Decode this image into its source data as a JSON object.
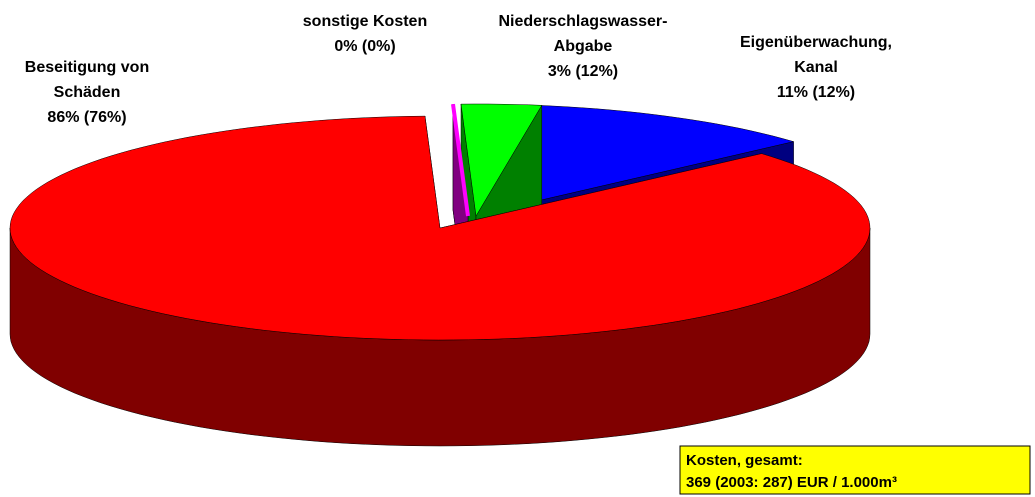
{
  "chart_data": {
    "type": "pie3d",
    "categories": [
      [
        "sonstige Kosten"
      ],
      [
        "Niederschlagswasser-",
        "Abgabe"
      ],
      [
        "Eigenüberwachung,",
        "Kanal"
      ],
      [
        "Beseitigung von",
        "Schäden"
      ]
    ],
    "values": [
      0,
      3,
      11,
      86
    ],
    "value_labels": [
      "0% (0%)",
      "3% (12%)",
      "11% (12%)",
      "86% (76%)"
    ],
    "colors": [
      "#ff00ff",
      "#00ff00",
      "#0000ff",
      "#ff0000"
    ],
    "side_colors": [
      "#800080",
      "#008000",
      "#000080",
      "#800000"
    ],
    "annotation": [
      "Kosten, gesamt:",
      "369 (2003: 287) EUR / 1.000m³"
    ]
  }
}
